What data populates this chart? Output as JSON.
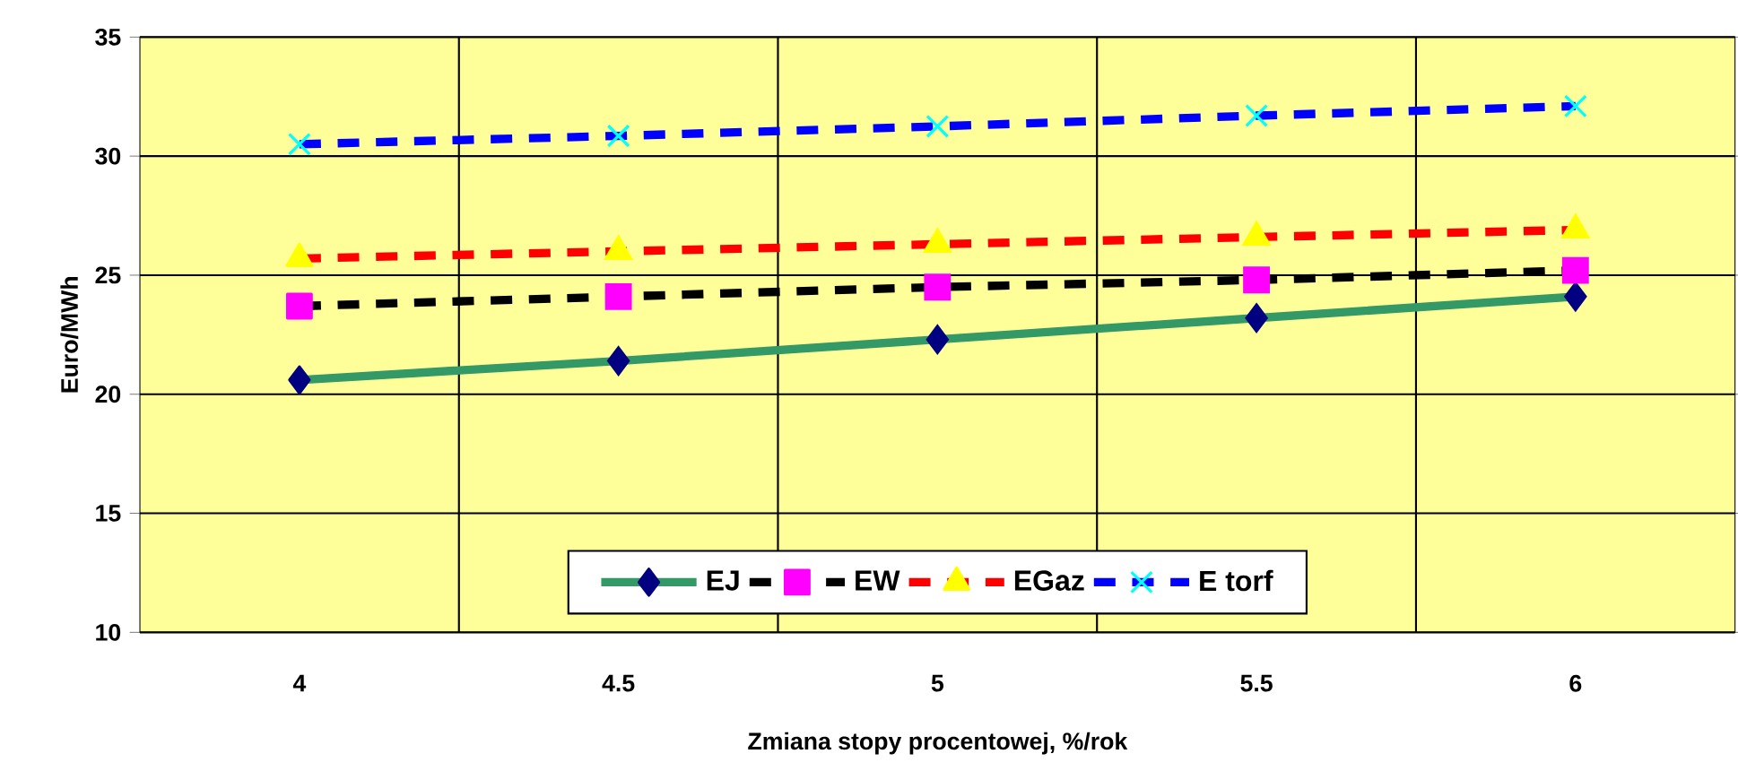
{
  "chart_data": {
    "type": "line",
    "xlabel": "Zmiana stopy procentowej, %/rok",
    "ylabel": "Euro/MWh",
    "categories": [
      "4",
      "4.5",
      "5",
      "5.5",
      "6"
    ],
    "ylim": [
      10,
      35
    ],
    "yticks": [
      10,
      15,
      20,
      25,
      30,
      35
    ],
    "grid": true,
    "legend": "bottom",
    "series": [
      {
        "name": "EJ",
        "color": "#339966",
        "colors": [
          "#000080",
          "#000080",
          "#000080",
          "#000080",
          "#000080"
        ],
        "marker": "diamond",
        "line_style": "solid",
        "values": [
          20.6,
          21.4,
          22.3,
          23.2,
          24.1
        ]
      },
      {
        "name": "EW",
        "color": "#000000",
        "colors": [
          "#ff00ff",
          "#ff00ff",
          "#ff00ff",
          "#ff00ff",
          "#ff00ff"
        ],
        "marker": "square",
        "line_style": "dashed",
        "values": [
          23.7,
          24.1,
          24.5,
          24.8,
          25.2
        ]
      },
      {
        "name": "EGaz",
        "color": "#ff0000",
        "colors": [
          "#ffff00",
          "#ffff00",
          "#ffff00",
          "#ffff00",
          "#ffff00"
        ],
        "marker": "triangle",
        "line_style": "dashed",
        "values": [
          25.7,
          26.0,
          26.3,
          26.6,
          26.9
        ]
      },
      {
        "name": "E torf",
        "color": "#0000ff",
        "colors": [
          "#00ffff",
          "#00ffff",
          "#00ffff",
          "#00ffff",
          "#00ffff"
        ],
        "marker": "cross",
        "line_style": "dashed",
        "values": [
          30.5,
          30.85,
          31.25,
          31.7,
          32.1
        ]
      }
    ]
  }
}
